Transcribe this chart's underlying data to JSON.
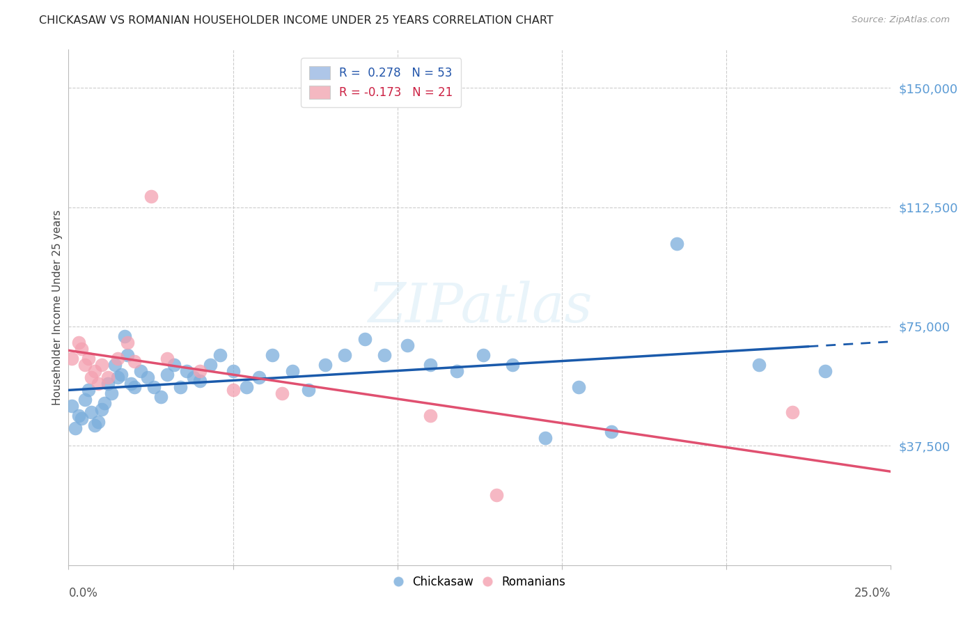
{
  "title": "CHICKASAW VS ROMANIAN HOUSEHOLDER INCOME UNDER 25 YEARS CORRELATION CHART",
  "source": "Source: ZipAtlas.com",
  "ylabel": "Householder Income Under 25 years",
  "ytick_labels": [
    "$37,500",
    "$75,000",
    "$112,500",
    "$150,000"
  ],
  "ytick_values": [
    37500,
    75000,
    112500,
    150000
  ],
  "xmin": 0.0,
  "xmax": 0.25,
  "ymin": 0,
  "ymax": 162000,
  "legend_r1": "R =  0.278   N = 53",
  "legend_r2": "R = -0.173   N = 21",
  "legend_1_color": "#aec6e8",
  "legend_2_color": "#f4b8c1",
  "watermark": "ZIPatlas",
  "chickasaw_color": "#7aaddb",
  "romanian_color": "#f4a0b0",
  "trend_blue": "#1a5aab",
  "trend_pink": "#e05070",
  "chickasaw_x": [
    0.001,
    0.002,
    0.003,
    0.004,
    0.005,
    0.006,
    0.007,
    0.008,
    0.009,
    0.01,
    0.011,
    0.012,
    0.013,
    0.014,
    0.015,
    0.016,
    0.017,
    0.018,
    0.019,
    0.02,
    0.022,
    0.024,
    0.026,
    0.028,
    0.03,
    0.032,
    0.034,
    0.036,
    0.038,
    0.04,
    0.043,
    0.046,
    0.05,
    0.054,
    0.058,
    0.062,
    0.068,
    0.073,
    0.078,
    0.084,
    0.09,
    0.096,
    0.103,
    0.11,
    0.118,
    0.126,
    0.135,
    0.145,
    0.155,
    0.165,
    0.185,
    0.21,
    0.23
  ],
  "chickasaw_y": [
    50000,
    43000,
    47000,
    46000,
    52000,
    55000,
    48000,
    44000,
    45000,
    49000,
    51000,
    57000,
    54000,
    63000,
    59000,
    60000,
    72000,
    66000,
    57000,
    56000,
    61000,
    59000,
    56000,
    53000,
    60000,
    63000,
    56000,
    61000,
    59000,
    58000,
    63000,
    66000,
    61000,
    56000,
    59000,
    66000,
    61000,
    55000,
    63000,
    66000,
    71000,
    66000,
    69000,
    63000,
    61000,
    66000,
    63000,
    40000,
    56000,
    42000,
    101000,
    63000,
    61000
  ],
  "romanian_x": [
    0.001,
    0.003,
    0.004,
    0.005,
    0.006,
    0.007,
    0.008,
    0.009,
    0.01,
    0.012,
    0.015,
    0.018,
    0.02,
    0.025,
    0.03,
    0.04,
    0.05,
    0.065,
    0.11,
    0.13,
    0.22
  ],
  "romanian_y": [
    65000,
    70000,
    68000,
    63000,
    65000,
    59000,
    61000,
    57000,
    63000,
    59000,
    65000,
    70000,
    64000,
    116000,
    65000,
    61000,
    55000,
    54000,
    47000,
    22000,
    48000
  ]
}
